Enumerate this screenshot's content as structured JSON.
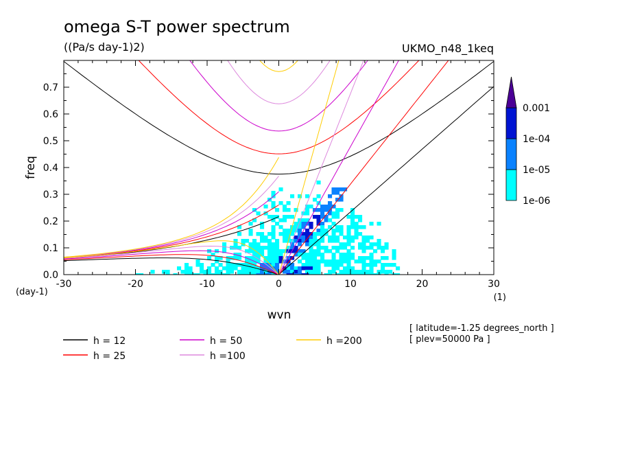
{
  "chart_data": {
    "type": "heatmap",
    "title": "omega S-T power spectrum",
    "units": "((Pa/s day-1)2)",
    "dataset": "UKMO_n48_1keq",
    "xlabel": "wvn",
    "ylabel": "freq",
    "x_unit": "(1)",
    "y_unit": "(day-1)",
    "xlim": [
      -30,
      30
    ],
    "ylim": [
      0,
      0.8
    ],
    "x_ticks": [
      -30,
      -20,
      -10,
      0,
      10,
      20,
      30
    ],
    "y_ticks": [
      0.0,
      0.1,
      0.2,
      0.3,
      0.4,
      0.5,
      0.6,
      0.7
    ],
    "x_tick_labels": [
      "-30",
      "-20",
      "-10",
      "0",
      "10",
      "20",
      "30"
    ],
    "y_tick_labels": [
      "0.0",
      "0.1",
      "0.2",
      "0.3",
      "0.4",
      "0.5",
      "0.6",
      "0.7"
    ],
    "colorbar": {
      "levels": [
        "1e-06",
        "1e-05",
        "1e-04",
        "0.001"
      ],
      "colors": [
        "#00ffff",
        "#0a82ff",
        "#0014d2",
        "#4b0096"
      ]
    },
    "dispersion_curves": [
      {
        "label": "h = 12",
        "h": 12,
        "color": "#000000"
      },
      {
        "label": "h = 25",
        "h": 25,
        "color": "#ff0000"
      },
      {
        "label": "h = 50",
        "h": 50,
        "color": "#cc00cc"
      },
      {
        "label": "h =100",
        "h": 100,
        "color": "#dd88dd"
      },
      {
        "label": "h =200",
        "h": 200,
        "color": "#ffcc00"
      }
    ],
    "annotations": [
      "[ latitude=-1.25 degrees_north ]",
      "[ plev=50000 Pa ]"
    ]
  }
}
